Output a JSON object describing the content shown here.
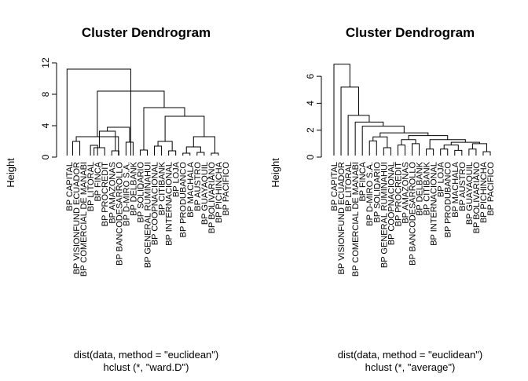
{
  "chart_data": [
    {
      "type": "dendrogram",
      "title": "Cluster Dendrogram",
      "ylabel": "Height",
      "xlabel": "dist(data, method = \"euclidean\")",
      "sublabel": "hclust (*, \"ward.D\")",
      "ylim": [
        0,
        12
      ],
      "yticks": [
        0,
        4,
        8,
        12
      ],
      "leaves": [
        "BP CAPITAL",
        "BP VISIONFUND ECUADOR",
        "BP COMERCIAL DE MANABI",
        "BP LITORAL",
        "BP FINCA",
        "BP PROCREDIT",
        "BP AMAZONAS",
        "BP BANCODESARROLLO",
        "BP D-MIRO S.A.",
        "BP DELBANK",
        "BP SOLIDARIO",
        "BP GENERAL RUMIÑAHUI",
        "BP COOPNACIONAL",
        "BP CITIBANK",
        "BP INTERNACIONAL",
        "BP LOJA",
        "BP PRODUBANCO",
        "BP MACHALA",
        "BP AUSTRO",
        "BP GUAYAQUIL",
        "BP BOLIVARIANO",
        "BP PICHINCHA",
        "BP PACIFICO"
      ],
      "merges": [
        {
          "x1": 0.5,
          "x2": 1.5,
          "h": 2.0
        },
        {
          "x1": 3,
          "x2": 4,
          "h": 1.5
        },
        {
          "x1": 3.5,
          "x2": 5,
          "h": 1.2
        },
        {
          "x1": 6,
          "x2": 7,
          "h": 0.8
        },
        {
          "x1": 4.25,
          "x2": 6.5,
          "h": 3.3
        },
        {
          "x1": 8,
          "x2": 9,
          "h": 1.9
        },
        {
          "x1": 5.375,
          "x2": 8.5,
          "h": 3.8
        },
        {
          "x1": 1,
          "x2": 6.9375,
          "h": 2.6
        },
        {
          "x1": 10,
          "x2": 11,
          "h": 0.9
        },
        {
          "x1": 12,
          "x2": 13,
          "h": 1.4
        },
        {
          "x1": 14,
          "x2": 15,
          "h": 0.8
        },
        {
          "x1": 12.5,
          "x2": 14.5,
          "h": 2.0
        },
        {
          "x1": 16,
          "x2": 17,
          "h": 0.5
        },
        {
          "x1": 18,
          "x2": 19,
          "h": 0.6
        },
        {
          "x1": 16.5,
          "x2": 18.5,
          "h": 1.3
        },
        {
          "x1": 20,
          "x2": 21,
          "h": 0.5
        },
        {
          "x1": 17.5,
          "x2": 20.5,
          "h": 2.6
        },
        {
          "x1": 13.5,
          "x2": 19,
          "h": 5.2
        },
        {
          "x1": 10.5,
          "x2": 16.25,
          "h": 6.3
        },
        {
          "x1": 3.96875,
          "x2": 13.375,
          "h": 8.4
        },
        {
          "x1": -0.3,
          "x2": 8.67,
          "h": 11.2
        }
      ]
    },
    {
      "type": "dendrogram",
      "title": "Cluster Dendrogram",
      "ylabel": "Height",
      "xlabel": "dist(data, method = \"euclidean\")",
      "sublabel": "hclust (*, \"average\")",
      "ylim": [
        0,
        7
      ],
      "yticks": [
        0,
        2,
        4,
        6
      ],
      "leaves": [
        "BP CAPITAL",
        "BP VISIONFUND ECUADOR",
        "BP LITORAL",
        "BP COMERCIAL DE MANABI",
        "BP FINCA",
        "BP D-MIRO S.A.",
        "BP SOLIDARIO",
        "BP GENERAL RUMIÑAHUI",
        "BP COOPNACIONAL",
        "BP PROCREDIT",
        "BP AMAZONAS",
        "BP BANCODESARROLLO",
        "BP DELBANK",
        "BP CITIBANK",
        "BP INTERNACIONAL",
        "BP LOJA",
        "BP PRODUBANCO",
        "BP MACHALA",
        "BP AUSTRO",
        "BP GUAYAQUIL",
        "BP BOLIVARIANO",
        "BP PICHINCHA",
        "BP PACIFICO"
      ],
      "merges": [
        {
          "x1": 5,
          "x2": 6,
          "h": 1.2
        },
        {
          "x1": 7,
          "x2": 8,
          "h": 0.7
        },
        {
          "x1": 5.5,
          "x2": 7.5,
          "h": 1.5
        },
        {
          "x1": 9,
          "x2": 10,
          "h": 0.9
        },
        {
          "x1": 11,
          "x2": 12,
          "h": 1.0
        },
        {
          "x1": 9.5,
          "x2": 11.5,
          "h": 1.3
        },
        {
          "x1": 13,
          "x2": 14,
          "h": 0.6
        },
        {
          "x1": 15,
          "x2": 16,
          "h": 0.6
        },
        {
          "x1": 17,
          "x2": 18,
          "h": 0.5
        },
        {
          "x1": 15.5,
          "x2": 17.5,
          "h": 0.9
        },
        {
          "x1": 19,
          "x2": 20,
          "h": 0.6
        },
        {
          "x1": 21,
          "x2": 22,
          "h": 0.4
        },
        {
          "x1": 19.5,
          "x2": 21.5,
          "h": 1.0
        },
        {
          "x1": 16.5,
          "x2": 20.5,
          "h": 1.1
        },
        {
          "x1": 13.5,
          "x2": 18.5,
          "h": 1.3
        },
        {
          "x1": 10.5,
          "x2": 16,
          "h": 1.6
        },
        {
          "x1": 6.5,
          "x2": 13.25,
          "h": 1.8
        },
        {
          "x1": 4,
          "x2": 9.875,
          "h": 2.3
        },
        {
          "x1": 3,
          "x2": 6.9375,
          "h": 2.6
        },
        {
          "x1": 2,
          "x2": 4.96875,
          "h": 3.1
        },
        {
          "x1": 1,
          "x2": 3.484375,
          "h": 5.2
        },
        {
          "x1": 0,
          "x2": 2.2421875,
          "h": 6.9
        }
      ]
    }
  ]
}
